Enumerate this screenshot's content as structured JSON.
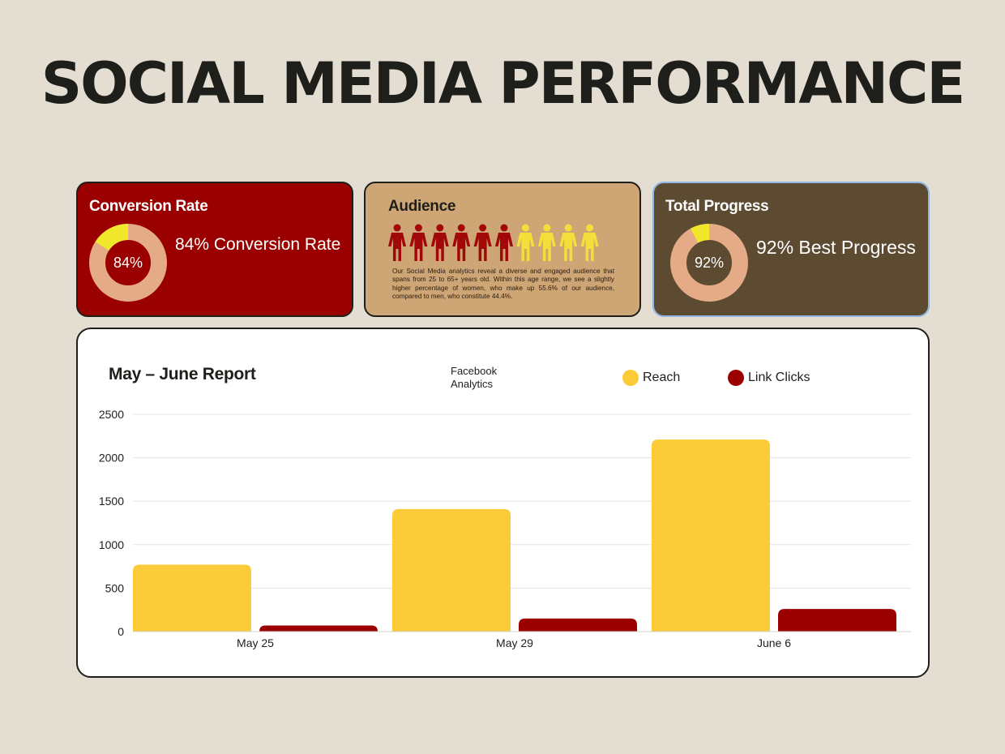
{
  "page": {
    "title": "SOCIAL MEDIA PERFORMANCE"
  },
  "cards": {
    "conversion": {
      "title": "Conversion Rate",
      "value": 84,
      "value_label": "84%",
      "text": "84% Conversion Rate"
    },
    "audience": {
      "title": "Audience",
      "description": "Our Social Media analytics reveal a diverse and engaged audience that spans from 25 to 65+ years old. Within this age range, we see a slightly higher percentage of women, who make up 55.6% of our audience, compared to men, who constitute 44.4%.",
      "people_total": 10,
      "people_highlighted": 6
    },
    "progress": {
      "title": "Total Progress",
      "value": 92,
      "value_label": "92%",
      "text": "92% Best Progress"
    }
  },
  "colors": {
    "background": "#e4ddd2",
    "dark_red": "#9b0000",
    "yellow": "#fbcb38",
    "bright_yellow": "#f1e72b",
    "salmon": "#e5aa86",
    "tan": "#cea574",
    "brown": "#5c4a31",
    "person_red": "#a10808",
    "person_yellow": "#f2df39"
  },
  "chart_data": {
    "type": "bar",
    "title": "May – June Report",
    "subtitle": "Facebook Analytics",
    "categories": [
      "May 25",
      "May 29",
      "June 6"
    ],
    "series": [
      {
        "name": "Reach",
        "color": "#fbcb38",
        "values": [
          770,
          1410,
          2210
        ]
      },
      {
        "name": "Link Clicks",
        "color": "#9b0000",
        "values": [
          70,
          150,
          260
        ]
      }
    ],
    "ylim": [
      0,
      2500
    ],
    "yticks": [
      0,
      500,
      1000,
      1500,
      2000,
      2500
    ],
    "grid": true,
    "legend": "top-right"
  }
}
